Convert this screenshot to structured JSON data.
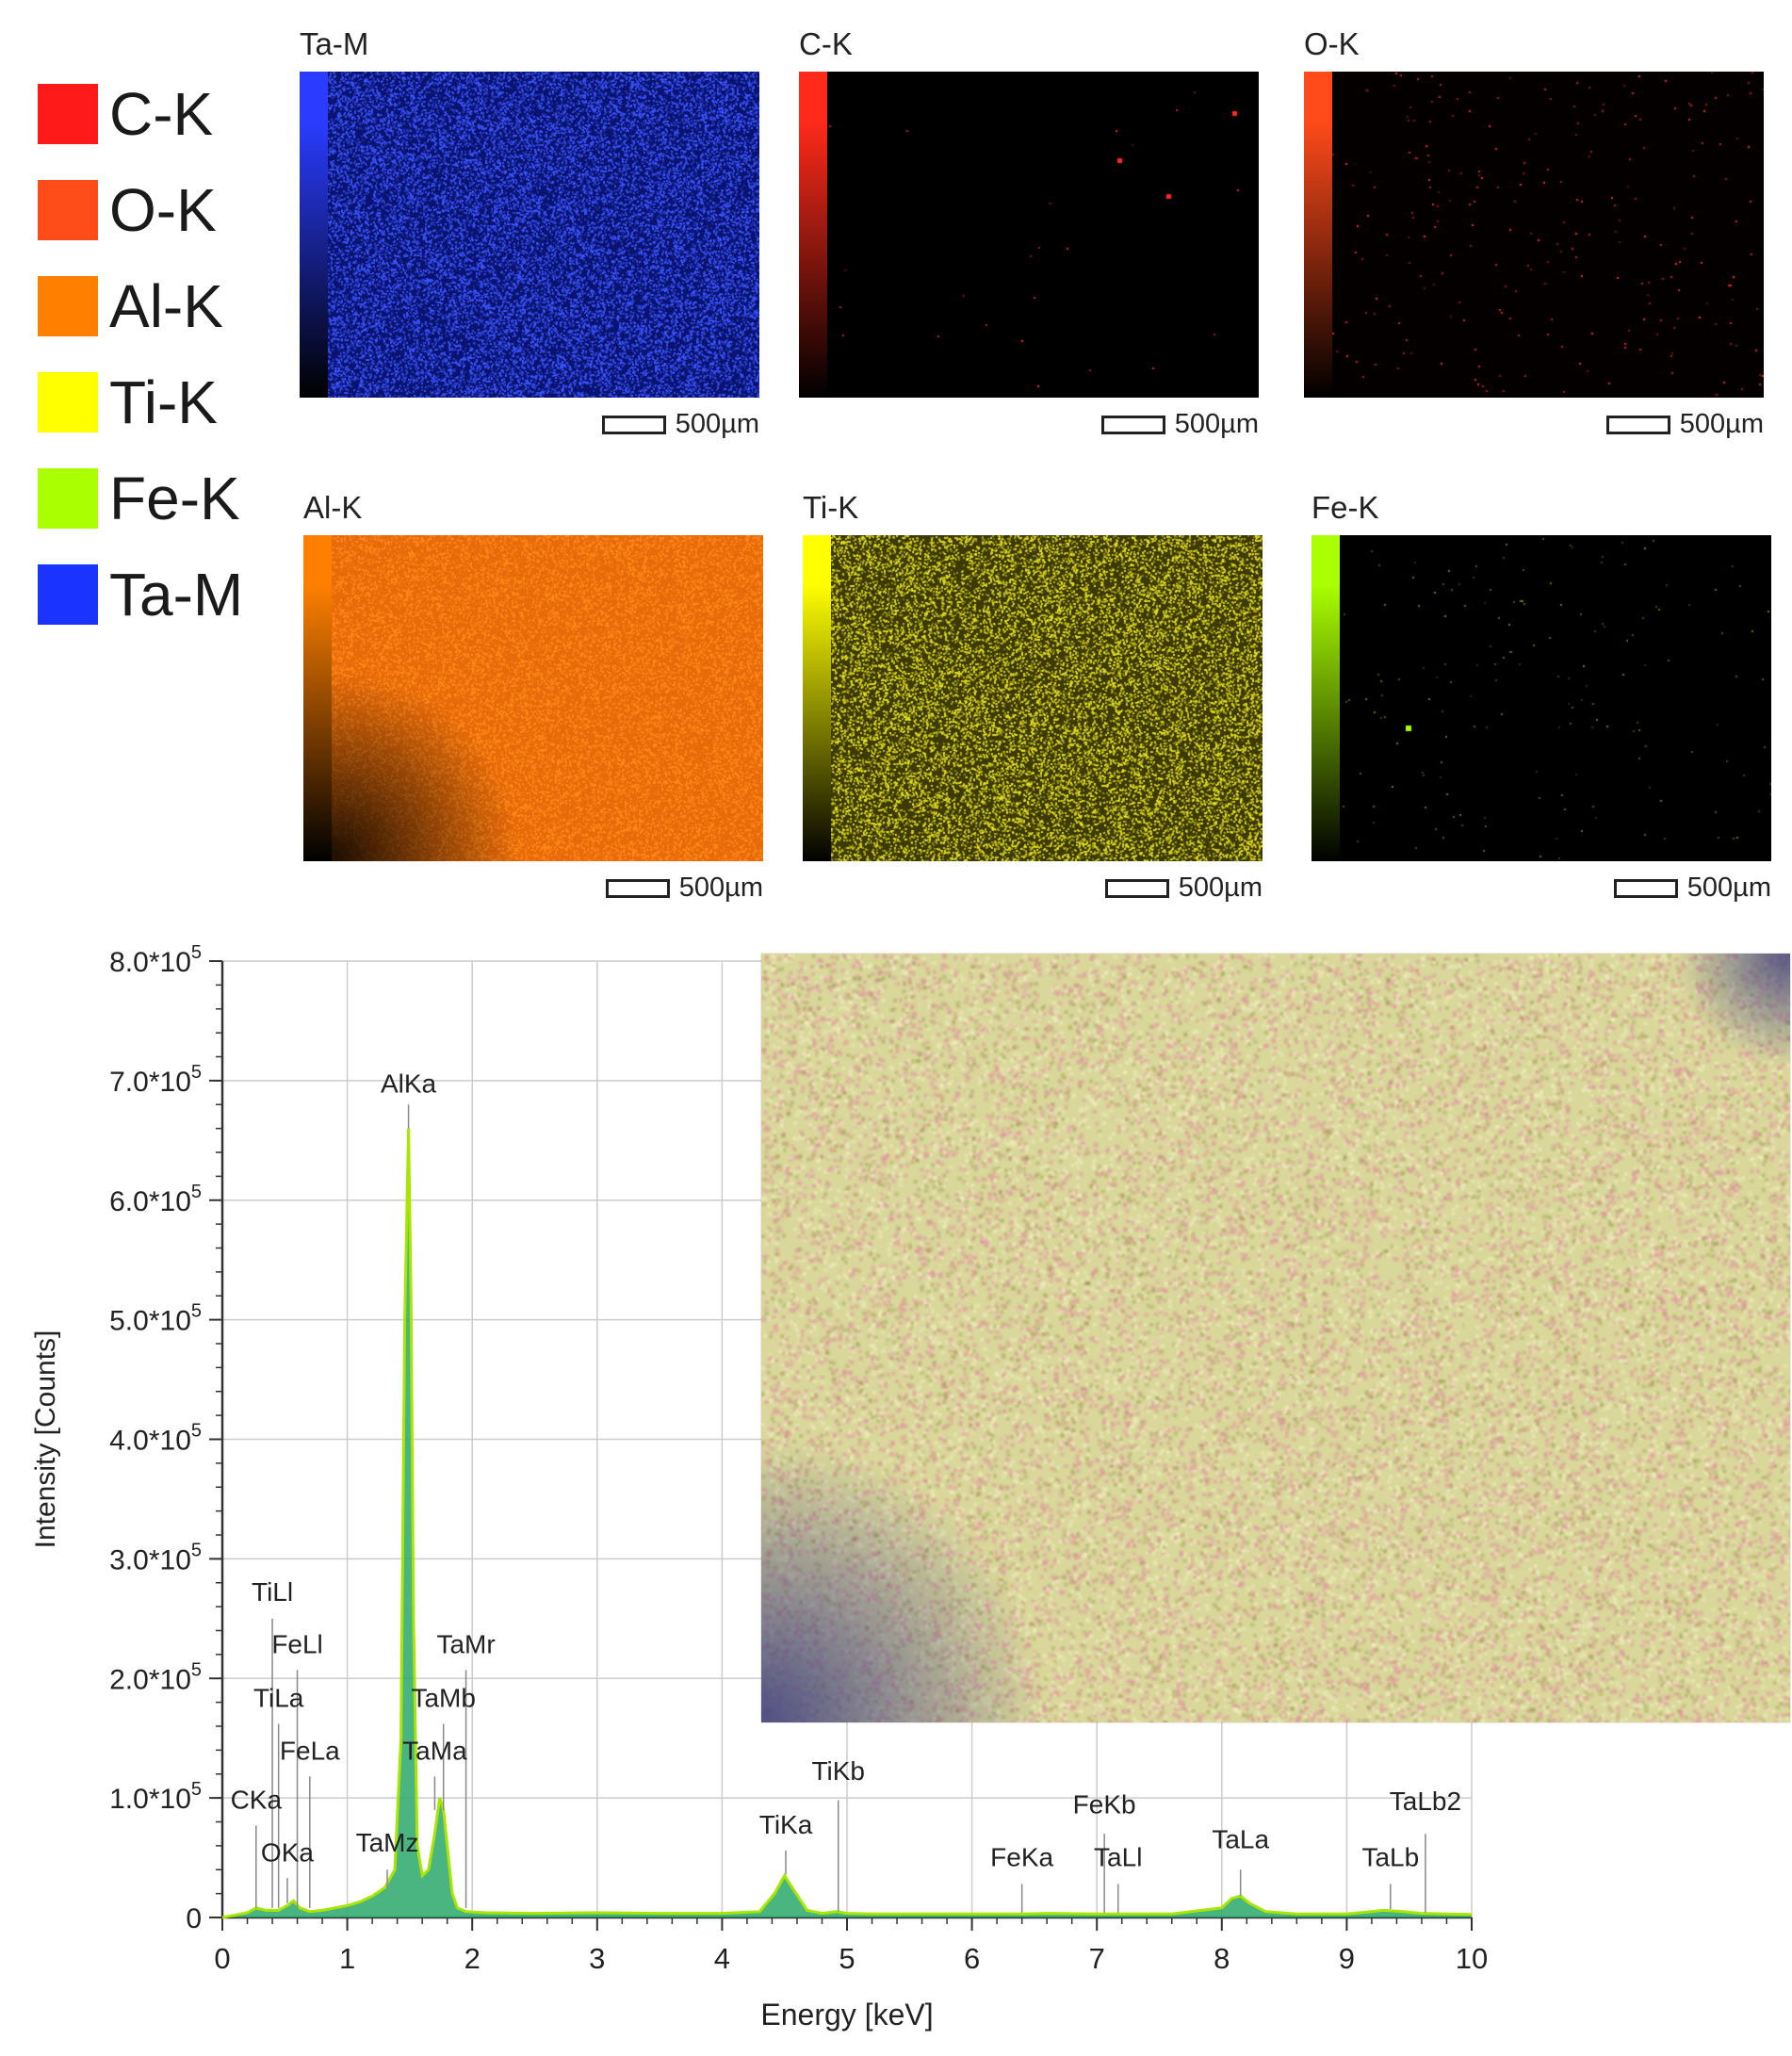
{
  "legend": [
    {
      "label": "C-K",
      "color": "#ff1a1a"
    },
    {
      "label": "O-K",
      "color": "#ff4d1a"
    },
    {
      "label": "Al-K",
      "color": "#ff8000"
    },
    {
      "label": "Ti-K",
      "color": "#ffff00"
    },
    {
      "label": "Fe-K",
      "color": "#aaff00"
    },
    {
      "label": "Ta-M",
      "color": "#1a33ff"
    }
  ],
  "maps": [
    {
      "title": "Ta-M",
      "scale": "500µm",
      "color": "#2a3cff",
      "bg": "#0a1470",
      "density": 0.55,
      "speck": "#3b55ff"
    },
    {
      "title": "C-K",
      "scale": "500µm",
      "color": "#ff2a1a",
      "bg": "#000000",
      "density": 0.0006,
      "speck": "#ff2a1a"
    },
    {
      "title": "O-K",
      "scale": "500µm",
      "color": "#ff4a1a",
      "bg": "#050000",
      "density": 0.006,
      "speck": "#ff2a1a"
    },
    {
      "title": "Al-K",
      "scale": "500µm",
      "color": "#ff8000",
      "bg": "#e86a0a",
      "density": 0.45,
      "speck": "#ff8c1a"
    },
    {
      "title": "Ti-K",
      "scale": "500µm",
      "color": "#ffff00",
      "bg": "#3c3a00",
      "density": 0.5,
      "speck": "#e6e020"
    },
    {
      "title": "Fe-K",
      "scale": "500µm",
      "color": "#aaff00",
      "bg": "#000000",
      "density": 0.004,
      "speck": "#5a8a00"
    }
  ],
  "chart_data": {
    "type": "line",
    "xlabel": "Energy [keV]",
    "ylabel": "Intensity [Counts]",
    "xlim": [
      0,
      10
    ],
    "ylim": [
      0,
      800000
    ],
    "xticks": [
      0,
      1,
      2,
      3,
      4,
      5,
      6,
      7,
      8,
      9,
      10
    ],
    "yticks": [
      {
        "value": 0,
        "label": "0"
      },
      {
        "value": 100000,
        "label": "1.0*10^5"
      },
      {
        "value": 200000,
        "label": "2.0*10^5"
      },
      {
        "value": 300000,
        "label": "3.0*10^5"
      },
      {
        "value": 400000,
        "label": "4.0*10^5"
      },
      {
        "value": 500000,
        "label": "5.0*10^5"
      },
      {
        "value": 600000,
        "label": "6.0*10^5"
      },
      {
        "value": 700000,
        "label": "7.0*10^5"
      },
      {
        "value": 800000,
        "label": "8.0*10^5"
      }
    ],
    "grid": true,
    "spectrum": {
      "x": [
        0.0,
        0.1,
        0.2,
        0.27,
        0.35,
        0.45,
        0.52,
        0.57,
        0.62,
        0.7,
        0.8,
        0.9,
        1.0,
        1.1,
        1.2,
        1.3,
        1.38,
        1.43,
        1.46,
        1.49,
        1.51,
        1.53,
        1.56,
        1.6,
        1.65,
        1.7,
        1.74,
        1.77,
        1.8,
        1.84,
        1.88,
        1.95,
        2.1,
        2.5,
        3.0,
        3.5,
        4.0,
        4.3,
        4.42,
        4.5,
        4.58,
        4.68,
        4.8,
        4.92,
        5.0,
        5.2,
        5.6,
        6.0,
        6.4,
        6.6,
        7.0,
        7.2,
        7.6,
        8.0,
        8.08,
        8.15,
        8.22,
        8.35,
        8.6,
        9.0,
        9.3,
        9.45,
        9.6,
        9.8,
        10.0
      ],
      "y": [
        0,
        2000,
        4000,
        8000,
        6000,
        6000,
        10000,
        14000,
        8000,
        5000,
        6000,
        8000,
        10000,
        13000,
        18000,
        25000,
        40000,
        150000,
        500000,
        660000,
        520000,
        250000,
        60000,
        35000,
        40000,
        70000,
        100000,
        90000,
        60000,
        20000,
        8000,
        5000,
        4000,
        3500,
        4000,
        3500,
        3500,
        5000,
        20000,
        35000,
        22000,
        6000,
        3500,
        5000,
        3500,
        3000,
        3000,
        3000,
        3000,
        3500,
        3000,
        3000,
        3000,
        8000,
        16000,
        18000,
        12000,
        5000,
        3000,
        3000,
        6000,
        5000,
        3500,
        3000,
        2500
      ]
    },
    "peak_labels": [
      {
        "label": "AlKa",
        "x": 1.49,
        "y": 690000,
        "line_from": 680000,
        "line_to": 660000
      },
      {
        "label": "TiLl",
        "x": 0.4,
        "y": 265000,
        "line_from": 250000,
        "line_to": 8000
      },
      {
        "label": "FeLl",
        "x": 0.6,
        "y": 221000,
        "line_from": 207000,
        "line_to": 8000
      },
      {
        "label": "TiLa",
        "x": 0.45,
        "y": 176000,
        "line_from": 162000,
        "line_to": 8000
      },
      {
        "label": "FeLa",
        "x": 0.7,
        "y": 132000,
        "line_from": 118000,
        "line_to": 8000
      },
      {
        "label": "CKa",
        "x": 0.27,
        "y": 91000,
        "line_from": 77000,
        "line_to": 8000
      },
      {
        "label": "OKa",
        "x": 0.52,
        "y": 47000,
        "line_from": 33000,
        "line_to": 12000
      },
      {
        "label": "TaMr",
        "x": 1.95,
        "y": 221000,
        "line_from": 207000,
        "line_to": 8000
      },
      {
        "label": "TaMb",
        "x": 1.77,
        "y": 176000,
        "line_from": 162000,
        "line_to": 90000
      },
      {
        "label": "TaMa",
        "x": 1.7,
        "y": 132000,
        "line_from": 118000,
        "line_to": 90000
      },
      {
        "label": "TaMz",
        "x": 1.32,
        "y": 55000,
        "line_from": 40000,
        "line_to": 25000
      },
      {
        "label": "TiKa",
        "x": 4.51,
        "y": 70000,
        "line_from": 56000,
        "line_to": 36000
      },
      {
        "label": "TiKb",
        "x": 4.93,
        "y": 115000,
        "line_from": 98000,
        "line_to": 5000
      },
      {
        "label": "FeKa",
        "x": 6.4,
        "y": 43000,
        "line_from": 28000,
        "line_to": 4000
      },
      {
        "label": "FeKb",
        "x": 7.06,
        "y": 87000,
        "line_from": 70000,
        "line_to": 4000
      },
      {
        "label": "TaLl",
        "x": 7.17,
        "y": 43000,
        "line_from": 28000,
        "line_to": 4000
      },
      {
        "label": "TaLa",
        "x": 8.15,
        "y": 58000,
        "line_from": 40000,
        "line_to": 18000
      },
      {
        "label": "TaLb",
        "x": 9.35,
        "y": 43000,
        "line_from": 28000,
        "line_to": 7000
      },
      {
        "label": "TaLb2",
        "x": 9.63,
        "y": 90000,
        "line_from": 70000,
        "line_to": 4000
      }
    ]
  },
  "colors": {
    "spectrum_line": "#a8e600",
    "spectrum_fill": "#2aa86a",
    "axis": "#333333",
    "grid": "#cccccc"
  }
}
